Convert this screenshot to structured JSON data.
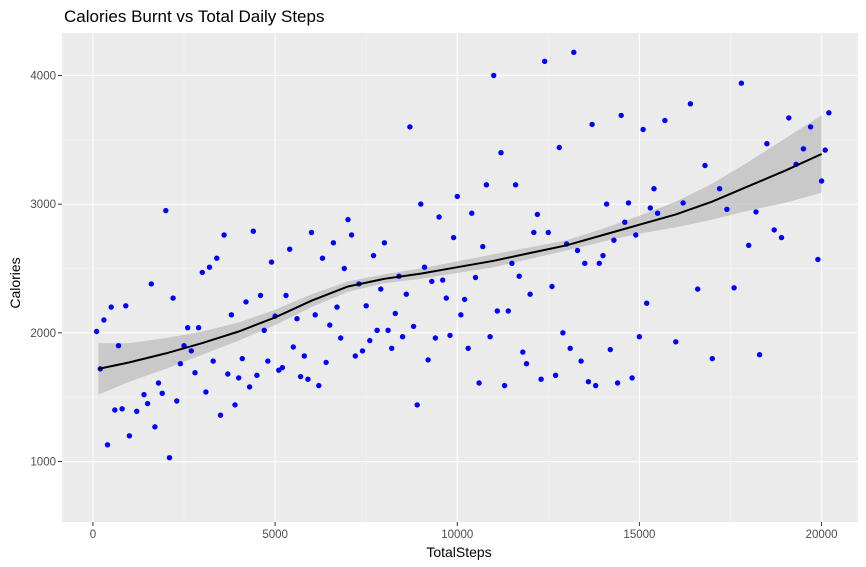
{
  "chart_data": {
    "type": "scatter",
    "title": "Calories Burnt vs Total Daily Steps",
    "xlabel": "TotalSteps",
    "ylabel": "Calories",
    "xlim": [
      -850,
      21000
    ],
    "ylim": [
      530,
      4330
    ],
    "x_ticks": [
      0,
      5000,
      10000,
      15000,
      20000
    ],
    "x_tick_labels": [
      "0",
      "5000",
      "10000",
      "15000",
      "20000"
    ],
    "y_ticks": [
      1000,
      2000,
      3000,
      4000
    ],
    "y_tick_labels": [
      "1000",
      "2000",
      "3000",
      "4000"
    ],
    "grid": true,
    "legend": "none",
    "colors": {
      "points": "#0000ff",
      "smooth_line": "#000000",
      "confidence_band": "#bdbdbd",
      "panel_background": "#ebebeb",
      "grid_major": "#ffffff",
      "grid_minor": "#f5f5f5"
    },
    "smooth": {
      "x": [
        150,
        1000,
        2000,
        3000,
        4000,
        5000,
        6000,
        7000,
        8000,
        9000,
        10000,
        11000,
        12000,
        13000,
        14000,
        15000,
        16000,
        17000,
        18000,
        19000,
        20000
      ],
      "y": [
        1720,
        1770,
        1840,
        1920,
        2010,
        2120,
        2250,
        2360,
        2420,
        2460,
        2510,
        2560,
        2620,
        2680,
        2760,
        2840,
        2920,
        3020,
        3140,
        3260,
        3390
      ],
      "lower": [
        1520,
        1620,
        1720,
        1830,
        1940,
        2060,
        2200,
        2320,
        2385,
        2420,
        2465,
        2510,
        2575,
        2640,
        2710,
        2770,
        2820,
        2880,
        2950,
        3010,
        3090
      ],
      "upper": [
        1920,
        1920,
        1960,
        2010,
        2080,
        2180,
        2300,
        2400,
        2455,
        2500,
        2555,
        2610,
        2665,
        2720,
        2810,
        2910,
        3020,
        3160,
        3330,
        3510,
        3690
      ]
    },
    "series": [
      {
        "x": [
          100,
          200,
          300,
          400,
          500,
          600,
          700,
          800,
          900,
          1000,
          1200,
          1400,
          1500,
          1600,
          1700,
          1800,
          1900,
          2000,
          2100,
          2200,
          2300,
          2400,
          2500,
          2600,
          2700,
          2800,
          2900,
          3000,
          3100,
          3200,
          3300,
          3400,
          3500,
          3600,
          3700,
          3800,
          3900,
          4000,
          4100,
          4200,
          4300,
          4400,
          4500,
          4600,
          4700,
          4800,
          4900,
          5000,
          5100,
          5200,
          5300,
          5400,
          5500,
          5600,
          5700,
          5800,
          5900,
          6000,
          6100,
          6200,
          6300,
          6400,
          6500,
          6600,
          6700,
          6800,
          6900,
          7000,
          7100,
          7200,
          7300,
          7400,
          7500,
          7600,
          7700,
          7800,
          7900,
          8000,
          8100,
          8200,
          8300,
          8400,
          8500,
          8600,
          8700,
          8800,
          8900,
          9000,
          9100,
          9200,
          9300,
          9400,
          9500,
          9600,
          9700,
          9800,
          9900,
          10000,
          10100,
          10200,
          10300,
          10400,
          10500,
          10600,
          10700,
          10800,
          10900,
          11000,
          11100,
          11200,
          11300,
          11400,
          11500,
          11600,
          11700,
          11800,
          11900,
          12000,
          12100,
          12200,
          12300,
          12400,
          12500,
          12600,
          12700,
          12800,
          12900,
          13000,
          13100,
          13200,
          13300,
          13400,
          13500,
          13600,
          13700,
          13800,
          13900,
          14000,
          14100,
          14200,
          14300,
          14400,
          14500,
          14600,
          14700,
          14800,
          14900,
          15000,
          15100,
          15200,
          15300,
          15400,
          15500,
          15700,
          16000,
          16200,
          16400,
          16600,
          16800,
          17000,
          17200,
          17400,
          17600,
          17800,
          18000,
          18200,
          18300,
          18500,
          18700,
          18900,
          19100,
          19300,
          19500,
          19700,
          19900,
          20000,
          20100,
          20200
        ],
        "y": [
          2010,
          1720,
          2100,
          1130,
          2200,
          1400,
          1900,
          1410,
          2210,
          1200,
          1390,
          1520,
          1450,
          2380,
          1270,
          1610,
          1530,
          2950,
          1030,
          2270,
          1470,
          1760,
          1900,
          2040,
          1860,
          1690,
          2040,
          2470,
          1540,
          2510,
          1780,
          2580,
          1360,
          2760,
          1680,
          2140,
          1440,
          1650,
          1800,
          2240,
          1580,
          2790,
          1670,
          2290,
          2020,
          1780,
          2550,
          2130,
          1710,
          1730,
          2290,
          2650,
          1890,
          2110,
          1660,
          1820,
          1640,
          2780,
          2140,
          1590,
          2580,
          1770,
          2060,
          2700,
          2200,
          1960,
          2500,
          2880,
          2760,
          1820,
          2380,
          1860,
          2210,
          1940,
          2600,
          2020,
          2340,
          2700,
          2020,
          1880,
          2150,
          2440,
          1970,
          2300,
          3600,
          2050,
          1440,
          3000,
          2510,
          1790,
          2400,
          1960,
          2900,
          2410,
          2270,
          1980,
          2740,
          3060,
          2140,
          2260,
          1880,
          2930,
          2430,
          1610,
          2670,
          3150,
          1970,
          4000,
          2170,
          3400,
          1590,
          2170,
          2540,
          3150,
          2440,
          1850,
          1760,
          2300,
          2780,
          2920,
          1640,
          4110,
          2780,
          2360,
          1670,
          3440,
          2000,
          2690,
          1880,
          4180,
          2640,
          1780,
          2540,
          1620,
          3620,
          1590,
          2540,
          2600,
          3000,
          1870,
          2720,
          1610,
          3690,
          2860,
          3010,
          1650,
          2760,
          1970,
          3580,
          2230,
          2970,
          3120,
          2930,
          3650,
          1930,
          3010,
          3780,
          2340,
          3300,
          1800,
          3120,
          2960,
          2350,
          3940,
          2680,
          2940,
          1830,
          3470,
          2800,
          2740,
          3670,
          3310,
          3430,
          3600,
          2570,
          3180,
          3420,
          3710
        ]
      }
    ]
  }
}
